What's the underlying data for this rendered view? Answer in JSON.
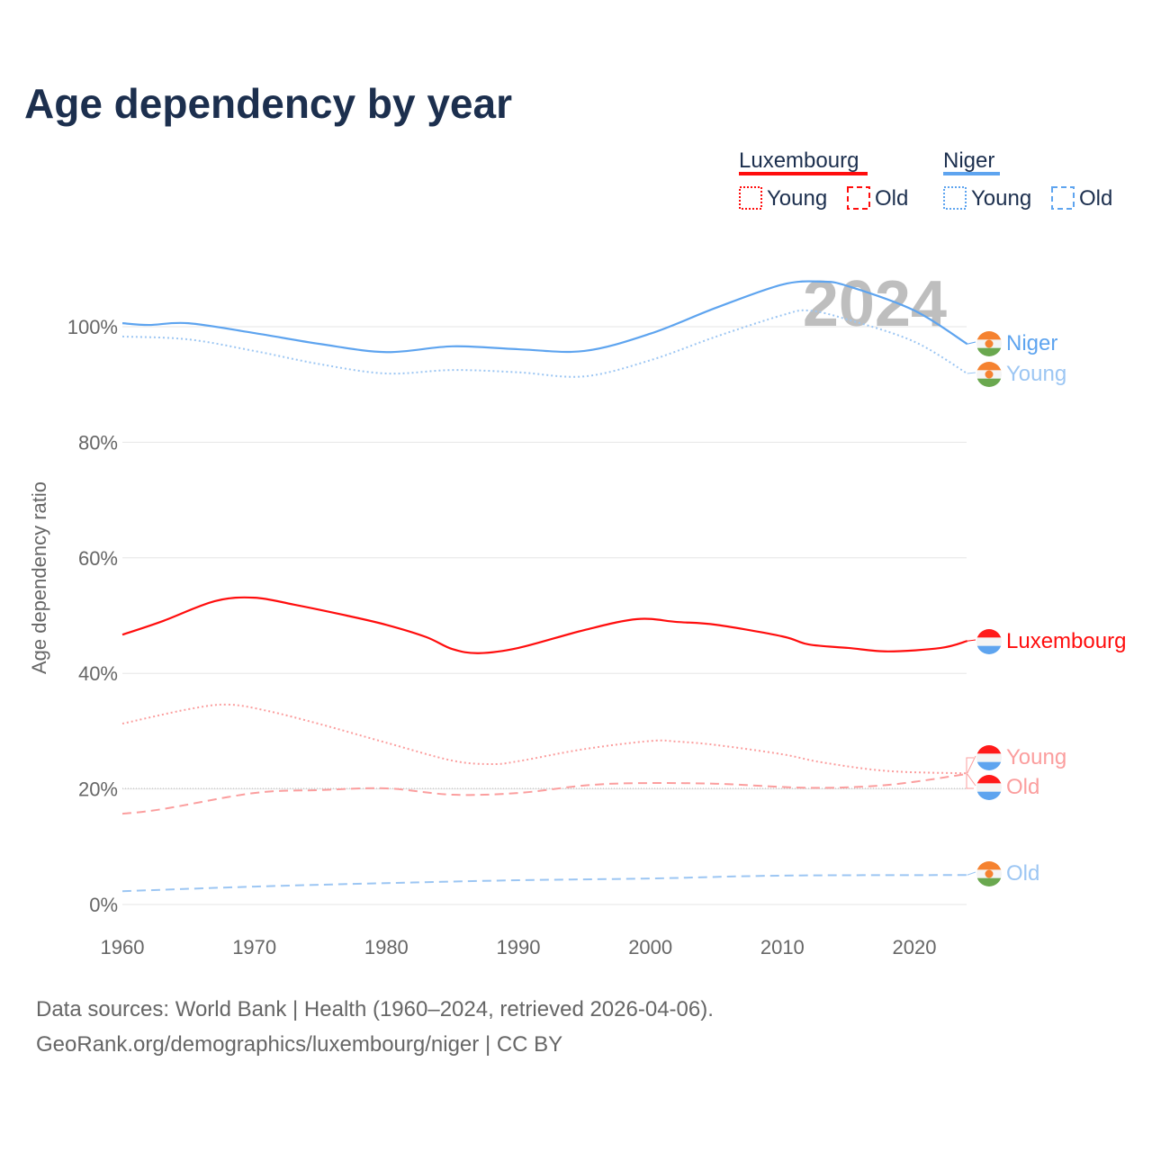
{
  "chart_data": {
    "type": "line",
    "title": "Age dependency by year",
    "ylabel": "Age dependency ratio",
    "xlabel": "",
    "xlim": [
      1960,
      2024
    ],
    "ylim": [
      0,
      110
    ],
    "x_ticks": [
      "1960",
      "1970",
      "1980",
      "1990",
      "2000",
      "2010",
      "2020"
    ],
    "y_ticks": [
      "0%",
      "20%",
      "40%",
      "60%",
      "80%",
      "100%"
    ],
    "grid": true,
    "watermark_year": "2024",
    "legend": {
      "placement": "top-right",
      "groups": [
        {
          "name": "Luxembourg",
          "color": "#ff0d0d",
          "items": [
            "Young",
            "Old"
          ]
        },
        {
          "name": "Niger",
          "color": "#5ea4ef",
          "items": [
            "Young",
            "Old"
          ]
        }
      ]
    },
    "series": [
      {
        "name": "Niger",
        "end_label": "Niger",
        "country": "Niger",
        "kind": "total",
        "color": "#5ea4ef",
        "style": "solid",
        "points": [
          [
            1960,
            100.6
          ],
          [
            1962,
            100.3
          ],
          [
            1965,
            100.6
          ],
          [
            1970,
            98.9
          ],
          [
            1975,
            97
          ],
          [
            1980,
            95.6
          ],
          [
            1985,
            96.6
          ],
          [
            1990,
            96.1
          ],
          [
            1995,
            95.8
          ],
          [
            2000,
            98.8
          ],
          [
            2005,
            103.3
          ],
          [
            2010,
            107.3
          ],
          [
            2013,
            107.8
          ],
          [
            2015,
            107
          ],
          [
            2020,
            102.8
          ],
          [
            2024,
            97
          ]
        ]
      },
      {
        "name": "Niger Young",
        "end_label": "Young",
        "country": "Niger",
        "kind": "young",
        "color": "#9cc6f3",
        "style": "dotted",
        "points": [
          [
            1960,
            98.3
          ],
          [
            1965,
            97.8
          ],
          [
            1970,
            95.8
          ],
          [
            1975,
            93.5
          ],
          [
            1980,
            91.9
          ],
          [
            1985,
            92.5
          ],
          [
            1990,
            92.1
          ],
          [
            1995,
            91.4
          ],
          [
            2000,
            94.2
          ],
          [
            2005,
            98.3
          ],
          [
            2010,
            102
          ],
          [
            2012,
            102.8
          ],
          [
            2015,
            101.2
          ],
          [
            2020,
            97.4
          ],
          [
            2024,
            91.9
          ]
        ]
      },
      {
        "name": "Luxembourg",
        "end_label": "Luxembourg",
        "country": "Luxembourg",
        "kind": "total",
        "color": "#ff0d0d",
        "style": "solid",
        "points": [
          [
            1960,
            46.7
          ],
          [
            1963,
            49
          ],
          [
            1967,
            52.5
          ],
          [
            1970,
            53.1
          ],
          [
            1973,
            51.9
          ],
          [
            1977,
            50
          ],
          [
            1980,
            48.4
          ],
          [
            1983,
            46.3
          ],
          [
            1985,
            44.2
          ],
          [
            1987,
            43.5
          ],
          [
            1990,
            44.4
          ],
          [
            1995,
            47.5
          ],
          [
            1999,
            49.4
          ],
          [
            2002,
            48.9
          ],
          [
            2005,
            48.4
          ],
          [
            2010,
            46.4
          ],
          [
            2012,
            45
          ],
          [
            2015,
            44.4
          ],
          [
            2018,
            43.8
          ],
          [
            2022,
            44.4
          ],
          [
            2024,
            45.6
          ]
        ]
      },
      {
        "name": "Luxembourg Young",
        "end_label": "Young",
        "country": "Luxembourg",
        "kind": "young",
        "color": "#fb9e9e",
        "style": "dotted",
        "points": [
          [
            1960,
            31.3
          ],
          [
            1965,
            33.8
          ],
          [
            1968,
            34.6
          ],
          [
            1971,
            33.5
          ],
          [
            1975,
            31.2
          ],
          [
            1980,
            28
          ],
          [
            1985,
            24.9
          ],
          [
            1988,
            24.3
          ],
          [
            1990,
            24.8
          ],
          [
            1995,
            26.9
          ],
          [
            2000,
            28.3
          ],
          [
            2002,
            28.2
          ],
          [
            2005,
            27.6
          ],
          [
            2010,
            26
          ],
          [
            2013,
            24.6
          ],
          [
            2018,
            23.1
          ],
          [
            2024,
            22.7
          ]
        ]
      },
      {
        "name": "Luxembourg Old",
        "end_label": "Old",
        "country": "Luxembourg",
        "kind": "old",
        "color": "#fb9e9e",
        "style": "dashed",
        "points": [
          [
            1960,
            15.7
          ],
          [
            1963,
            16.5
          ],
          [
            1970,
            19.3
          ],
          [
            1975,
            19.8
          ],
          [
            1980,
            20.1
          ],
          [
            1985,
            19
          ],
          [
            1990,
            19.3
          ],
          [
            1995,
            20.6
          ],
          [
            1999,
            21
          ],
          [
            2005,
            20.9
          ],
          [
            2012,
            20.2
          ],
          [
            2018,
            20.7
          ],
          [
            2024,
            22.6
          ]
        ]
      },
      {
        "name": "Niger Old",
        "end_label": "Old",
        "country": "Niger",
        "kind": "old",
        "color": "#9cc6f3",
        "style": "dashed",
        "points": [
          [
            1960,
            2.3
          ],
          [
            1970,
            3.1
          ],
          [
            1980,
            3.7
          ],
          [
            1990,
            4.2
          ],
          [
            2000,
            4.5
          ],
          [
            2010,
            5
          ],
          [
            2024,
            5.1
          ]
        ]
      }
    ]
  },
  "sources": {
    "line1": "Data sources: World Bank | Health (1960–2024, retrieved 2026-04-06).",
    "line2": "GeoRank.org/demographics/luxembourg/niger | CC BY"
  }
}
